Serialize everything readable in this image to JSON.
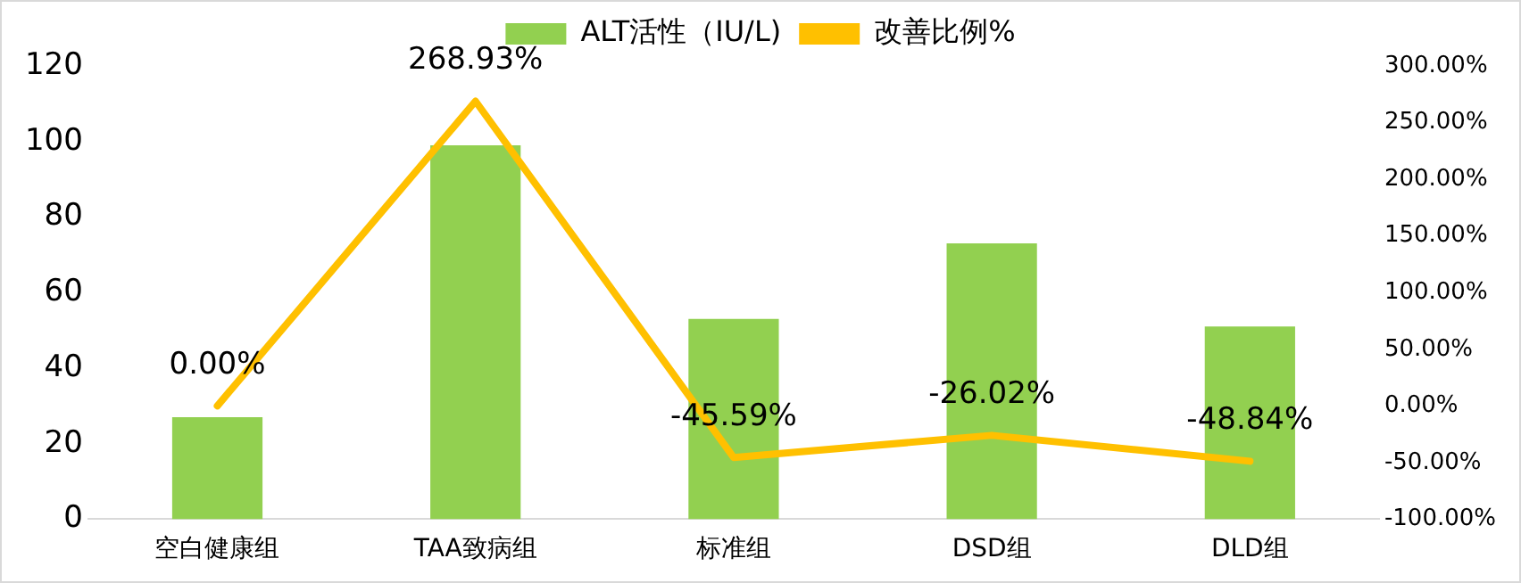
{
  "chart_data": {
    "type": "bar",
    "categories": [
      "空白健康组",
      "TAA致病组",
      "标准组",
      "DSD组",
      "DLD组"
    ],
    "series": [
      {
        "name": "ALT活性（IU/L)",
        "color": "#92d050",
        "values": [
          27,
          99,
          53,
          73,
          51
        ]
      },
      {
        "name": "改善比例%",
        "type": "line",
        "axis": "y2",
        "color": "#ffc000",
        "values": [
          0,
          268.93,
          -45.59,
          -26.02,
          -48.84
        ],
        "value_labels": [
          "0.00%",
          "268.93%",
          "-45.59%",
          "-26.02%",
          "-48.84%"
        ]
      }
    ],
    "ylim": [
      0,
      120
    ],
    "yticks": [
      0,
      20,
      40,
      60,
      80,
      100,
      120
    ],
    "y2lim": [
      -100,
      300
    ],
    "y2ticks": [
      {
        "value": -100,
        "label": "-100.00%"
      },
      {
        "value": -50,
        "label": "-50.00%"
      },
      {
        "value": 0,
        "label": "0.00%"
      },
      {
        "value": 50,
        "label": "50.00%"
      },
      {
        "value": 100,
        "label": "100.00%"
      },
      {
        "value": 150,
        "label": "150.00%"
      },
      {
        "value": 200,
        "label": "200.00%"
      },
      {
        "value": 250,
        "label": "250.00%"
      },
      {
        "value": 300,
        "label": "300.00%"
      }
    ],
    "grid": false,
    "legend": "top",
    "marker": "none",
    "line_style": "solid"
  }
}
